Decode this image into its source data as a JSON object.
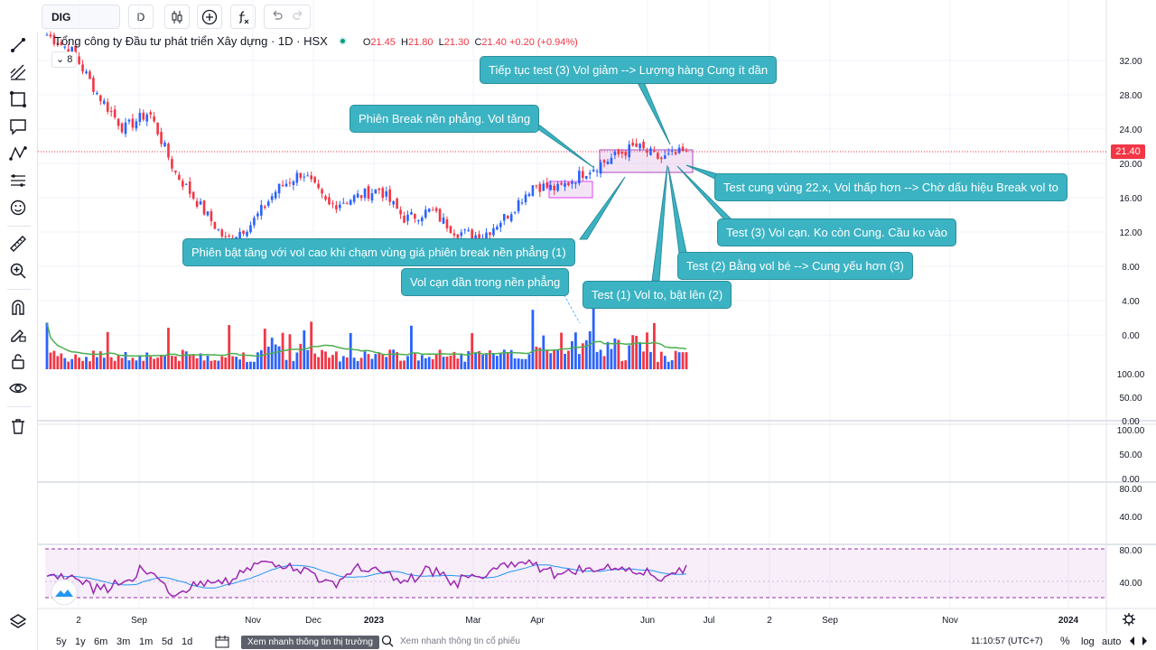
{
  "toolbar": {
    "symbol": "DIG",
    "interval": "D",
    "candle_icon": "candlestick-icon",
    "add_icon": "plus-circle-icon",
    "indicator_icon": "indicators-icon",
    "undo_icon": "undo-icon",
    "redo_icon": "redo-icon"
  },
  "legend": {
    "title": "Tổng công ty Đầu tư phát triển Xây dựng · 1D · HSX",
    "o_label": "O",
    "o": "21.45",
    "h_label": "H",
    "h": "21.80",
    "l_label": "L",
    "l": "21.30",
    "c_label": "C",
    "c": "21.40",
    "change": "+0.20 (+0.94%)",
    "collapsed_count": "8"
  },
  "annotations": [
    "Tiếp tục test (3) Vol giảm --> Lượng hàng Cung ít dần",
    "Phiên Break nền phẳng. Vol tăng",
    "Test cung vùng 22.x, Vol thấp hơn --> Chờ dấu hiệu Break vol to",
    "Test (3) Vol cạn. Ko còn Cung. Cầu ko vào",
    "Phiên bật tăng với vol cao khi chạm vùng giá phiên break nền phẳng (1)",
    "Test (2) Bằng vol bé --> Cung yếu hơn (3)",
    "Vol cạn dần trong nền phẳng",
    "Test (1) Vol to, bật lên (2)"
  ],
  "price_tag": "21.40",
  "price_axis": [
    "32.00",
    "28.00",
    "24.00",
    "20.00",
    "16.00",
    "12.00",
    "8.00",
    "4.00",
    "0.00"
  ],
  "volume_axis": [
    "100.00",
    "50.00",
    "0.00"
  ],
  "pane2_axis": [
    "100.00",
    "50.00",
    "0.00"
  ],
  "pane3_axis": [
    "80.00",
    "40.00"
  ],
  "rsi_axis": [
    "80.00",
    "40.00"
  ],
  "time_axis": [
    "2",
    "Sep",
    "Nov",
    "Dec",
    "2023",
    "Mar",
    "Apr",
    "Jun",
    "Jul",
    "2",
    "Sep",
    "Nov",
    "2024"
  ],
  "bottom": {
    "ranges": [
      "5y",
      "1y",
      "6m",
      "3m",
      "1m",
      "5d",
      "1d"
    ],
    "market_news": "Xem nhanh thông tin thị trường",
    "stock_news": "Xem nhanh thông tin cổ phiếu",
    "clock": "11:10:57 (UTC+7)",
    "percent": "%",
    "log": "log",
    "auto": "auto"
  },
  "colors": {
    "up": "#2962ff",
    "down": "#f23645",
    "ma": "#4caf50",
    "rsi": "#9c27b0",
    "rsi_ma": "#2196f3",
    "annotation": "#3bb3c3"
  },
  "chart_data": {
    "type": "candlestick",
    "symbol": "DIG",
    "interval": "1D",
    "exchange": "HSX",
    "price_range": [
      0,
      34
    ],
    "last": {
      "open": 21.45,
      "high": 21.8,
      "low": 21.3,
      "close": 21.4,
      "change": 0.2,
      "change_pct": 0.94
    },
    "close_path": [
      {
        "t": "Aug",
        "v": 35
      },
      {
        "t": "Sep",
        "v": 33
      },
      {
        "t": "Sep",
        "v": 28
      },
      {
        "t": "Oct",
        "v": 24
      },
      {
        "t": "Oct",
        "v": 26
      },
      {
        "t": "Oct",
        "v": 19
      },
      {
        "t": "Nov",
        "v": 15
      },
      {
        "t": "Nov",
        "v": 11
      },
      {
        "t": "Nov",
        "v": 13
      },
      {
        "t": "Dec",
        "v": 17
      },
      {
        "t": "Dec",
        "v": 19
      },
      {
        "t": "Dec",
        "v": 15
      },
      {
        "t": "Jan",
        "v": 16
      },
      {
        "t": "Jan",
        "v": 17
      },
      {
        "t": "Feb",
        "v": 13.5
      },
      {
        "t": "Feb",
        "v": 14.5
      },
      {
        "t": "Mar",
        "v": 12
      },
      {
        "t": "Mar",
        "v": 11.5
      },
      {
        "t": "Apr",
        "v": 14
      },
      {
        "t": "Apr",
        "v": 17.5
      },
      {
        "t": "Apr",
        "v": 17
      },
      {
        "t": "May",
        "v": 19
      },
      {
        "t": "May",
        "v": 20.5
      },
      {
        "t": "Jun",
        "v": 22
      },
      {
        "t": "Jun",
        "v": 20.5
      },
      {
        "t": "Jun",
        "v": 21.4
      }
    ],
    "base_range": {
      "from": "Apr",
      "to": "Apr",
      "low": 16.2,
      "high": 18.2
    },
    "resistance_range": {
      "from": "May",
      "to": "Jun",
      "low": 19.3,
      "high": 22.5
    },
    "rsi": {
      "upper": 80,
      "lower": 20,
      "last": 60
    }
  }
}
